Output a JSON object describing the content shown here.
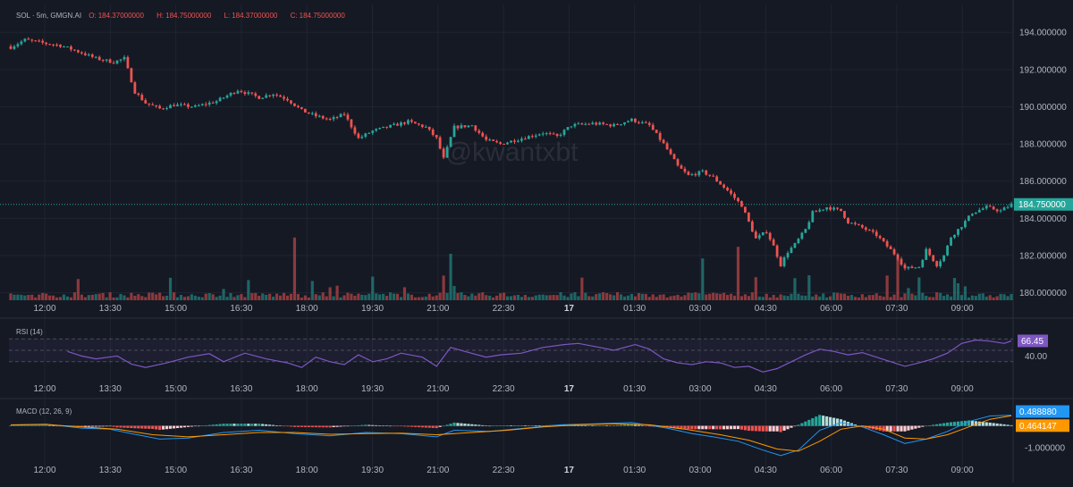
{
  "header": {
    "symbol": "SOL · 5m, GMGN.AI",
    "o_label": "O:",
    "o_value": "184.37000000",
    "h_label": "H:",
    "h_value": "184.75000000",
    "l_label": "L:",
    "l_value": "184.37000000",
    "c_label": "C:",
    "c_value": "184.75000000"
  },
  "watermark": "@kwantxbt",
  "colors": {
    "bg": "#151924",
    "up": "#26a69a",
    "down": "#ef5350",
    "rsi": "#7e57c2",
    "macd": "#2196f3",
    "signal": "#ff9800",
    "grid": "#1f2431",
    "text": "#b2b5be"
  },
  "time_axis": [
    "12:00",
    "13:30",
    "15:00",
    "16:30",
    "18:00",
    "19:30",
    "21:00",
    "22:30",
    "17",
    "01:30",
    "03:00",
    "04:30",
    "06:00",
    "07:30",
    "09:00"
  ],
  "chart_data": [
    {
      "type": "candlestick",
      "ylim": [
        179.5,
        195.5
      ],
      "y_ticks": [
        "194.000000",
        "192.000000",
        "190.000000",
        "188.000000",
        "186.000000",
        "184.000000",
        "182.000000",
        "180.000000"
      ],
      "last_price": 184.75,
      "last_price_label": "184.750000",
      "close_path": [
        [
          0,
          193.2
        ],
        [
          4,
          193.6
        ],
        [
          10,
          193.4
        ],
        [
          14,
          193.3
        ],
        [
          20,
          192.9
        ],
        [
          24,
          192.6
        ],
        [
          29,
          192.4
        ],
        [
          32,
          192.6
        ],
        [
          35,
          190.8
        ],
        [
          38,
          190.2
        ],
        [
          42,
          189.9
        ],
        [
          46,
          190.1
        ],
        [
          52,
          190.0
        ],
        [
          58,
          190.3
        ],
        [
          64,
          190.9
        ],
        [
          70,
          190.5
        ],
        [
          74,
          190.7
        ],
        [
          78,
          190.4
        ],
        [
          82,
          189.8
        ],
        [
          86,
          189.5
        ],
        [
          90,
          189.3
        ],
        [
          94,
          189.6
        ],
        [
          98,
          188.3
        ],
        [
          102,
          188.7
        ],
        [
          108,
          189.0
        ],
        [
          112,
          189.2
        ],
        [
          117,
          188.9
        ],
        [
          120,
          188.3
        ],
        [
          122,
          187.2
        ],
        [
          125,
          188.9
        ],
        [
          130,
          189.0
        ],
        [
          134,
          188.2
        ],
        [
          138,
          188.0
        ],
        [
          144,
          188.3
        ],
        [
          150,
          188.6
        ],
        [
          154,
          188.4
        ],
        [
          158,
          189.0
        ],
        [
          164,
          189.1
        ],
        [
          170,
          189.0
        ],
        [
          175,
          189.3
        ],
        [
          180,
          189.0
        ],
        [
          184,
          188.0
        ],
        [
          188,
          186.8
        ],
        [
          191,
          186.3
        ],
        [
          195,
          186.5
        ],
        [
          198,
          186.2
        ],
        [
          202,
          185.5
        ],
        [
          206,
          184.7
        ],
        [
          210,
          182.9
        ],
        [
          213,
          183.3
        ],
        [
          215,
          182.5
        ],
        [
          217,
          181.5
        ],
        [
          219,
          182.2
        ],
        [
          221,
          182.6
        ],
        [
          224,
          183.4
        ],
        [
          226,
          184.3
        ],
        [
          230,
          184.6
        ],
        [
          234,
          184.4
        ],
        [
          236,
          183.8
        ],
        [
          240,
          183.5
        ],
        [
          244,
          183.1
        ],
        [
          248,
          182.3
        ],
        [
          250,
          181.9
        ],
        [
          252,
          181.3
        ],
        [
          256,
          181.4
        ],
        [
          258,
          182.3
        ],
        [
          261,
          181.5
        ],
        [
          263,
          182.0
        ],
        [
          265,
          183.0
        ],
        [
          268,
          183.6
        ],
        [
          271,
          184.3
        ],
        [
          275,
          184.6
        ],
        [
          279,
          184.4
        ],
        [
          282,
          184.75
        ]
      ],
      "vol_spikes": {
        "80": 27,
        "124": 20,
        "195": 18,
        "205": 23,
        "250": 18
      },
      "series": [
        {
          "name": "",
          "values": []
        }
      ]
    },
    {
      "type": "line",
      "title": "RSI (14)",
      "ylim": [
        0,
        100
      ],
      "y_ticks": [
        "40.00"
      ],
      "levels": [
        70,
        50,
        30
      ],
      "last_label": "66.45",
      "series": [
        {
          "name": "",
          "points": [
            [
              16,
              48
            ],
            [
              20,
              40
            ],
            [
              24,
              35
            ],
            [
              30,
              40
            ],
            [
              34,
              26
            ],
            [
              38,
              20
            ],
            [
              44,
              28
            ],
            [
              50,
              38
            ],
            [
              56,
              44
            ],
            [
              60,
              30
            ],
            [
              66,
              45
            ],
            [
              72,
              35
            ],
            [
              78,
              28
            ],
            [
              82,
              20
            ],
            [
              86,
              38
            ],
            [
              90,
              30
            ],
            [
              94,
              25
            ],
            [
              98,
              42
            ],
            [
              102,
              30
            ],
            [
              106,
              35
            ],
            [
              110,
              45
            ],
            [
              116,
              38
            ],
            [
              120,
              22
            ],
            [
              124,
              55
            ],
            [
              128,
              48
            ],
            [
              134,
              38
            ],
            [
              138,
              42
            ],
            [
              144,
              45
            ],
            [
              150,
              55
            ],
            [
              156,
              60
            ],
            [
              160,
              62
            ],
            [
              166,
              55
            ],
            [
              170,
              50
            ],
            [
              176,
              60
            ],
            [
              180,
              52
            ],
            [
              184,
              35
            ],
            [
              188,
              28
            ],
            [
              192,
              25
            ],
            [
              196,
              30
            ],
            [
              200,
              28
            ],
            [
              204,
              20
            ],
            [
              208,
              22
            ],
            [
              212,
              12
            ],
            [
              216,
              18
            ],
            [
              220,
              30
            ],
            [
              224,
              42
            ],
            [
              228,
              52
            ],
            [
              232,
              48
            ],
            [
              236,
              42
            ],
            [
              240,
              46
            ],
            [
              244,
              38
            ],
            [
              248,
              30
            ],
            [
              252,
              22
            ],
            [
              256,
              28
            ],
            [
              260,
              35
            ],
            [
              264,
              45
            ],
            [
              268,
              62
            ],
            [
              272,
              68
            ],
            [
              276,
              66
            ],
            [
              280,
              62
            ],
            [
              282,
              66.45
            ]
          ]
        }
      ]
    },
    {
      "type": "line",
      "title": "MACD (12, 26, 9)",
      "ylim": [
        -1.6,
        1.0
      ],
      "y_ticks": [
        "-1.000000"
      ],
      "macd_label": "0.488880",
      "signal_label": "0.464147",
      "series": [
        {
          "name": "",
          "points": [
            [
              0,
              0.05
            ],
            [
              10,
              0.08
            ],
            [
              20,
              -0.1
            ],
            [
              28,
              -0.15
            ],
            [
              34,
              -0.35
            ],
            [
              42,
              -0.6
            ],
            [
              50,
              -0.55
            ],
            [
              60,
              -0.3
            ],
            [
              70,
              -0.2
            ],
            [
              80,
              -0.35
            ],
            [
              90,
              -0.45
            ],
            [
              100,
              -0.3
            ],
            [
              110,
              -0.35
            ],
            [
              120,
              -0.5
            ],
            [
              125,
              -0.2
            ],
            [
              135,
              -0.25
            ],
            [
              145,
              -0.1
            ],
            [
              155,
              0.05
            ],
            [
              165,
              0.1
            ],
            [
              175,
              0.15
            ],
            [
              185,
              -0.1
            ],
            [
              192,
              -0.35
            ],
            [
              198,
              -0.5
            ],
            [
              205,
              -0.7
            ],
            [
              212,
              -1.1
            ],
            [
              217,
              -1.35
            ],
            [
              222,
              -1.1
            ],
            [
              228,
              -0.2
            ],
            [
              234,
              0.15
            ],
            [
              240,
              -0.05
            ],
            [
              246,
              -0.4
            ],
            [
              252,
              -0.8
            ],
            [
              258,
              -0.6
            ],
            [
              264,
              -0.25
            ],
            [
              270,
              0.2
            ],
            [
              276,
              0.45
            ],
            [
              282,
              0.49
            ]
          ]
        },
        {
          "name": "",
          "points": [
            [
              0,
              0.04
            ],
            [
              10,
              0.06
            ],
            [
              20,
              -0.05
            ],
            [
              30,
              -0.15
            ],
            [
              40,
              -0.4
            ],
            [
              50,
              -0.5
            ],
            [
              60,
              -0.4
            ],
            [
              70,
              -0.3
            ],
            [
              80,
              -0.3
            ],
            [
              90,
              -0.38
            ],
            [
              100,
              -0.35
            ],
            [
              110,
              -0.33
            ],
            [
              120,
              -0.4
            ],
            [
              130,
              -0.3
            ],
            [
              140,
              -0.2
            ],
            [
              150,
              -0.05
            ],
            [
              160,
              0.05
            ],
            [
              170,
              0.1
            ],
            [
              180,
              0.05
            ],
            [
              190,
              -0.15
            ],
            [
              200,
              -0.4
            ],
            [
              208,
              -0.65
            ],
            [
              216,
              -1.05
            ],
            [
              222,
              -1.15
            ],
            [
              228,
              -0.7
            ],
            [
              234,
              -0.15
            ],
            [
              240,
              0.0
            ],
            [
              246,
              -0.15
            ],
            [
              252,
              -0.55
            ],
            [
              258,
              -0.6
            ],
            [
              264,
              -0.4
            ],
            [
              270,
              -0.05
            ],
            [
              276,
              0.3
            ],
            [
              282,
              0.46
            ]
          ]
        }
      ]
    }
  ]
}
